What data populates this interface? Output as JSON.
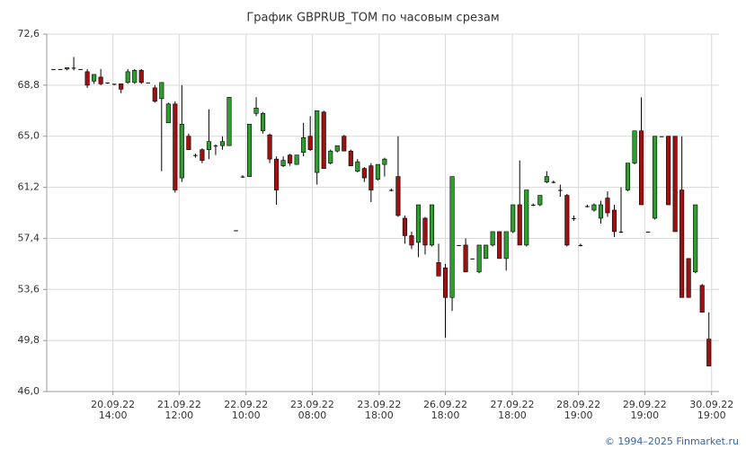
{
  "chart_data": {
    "type": "candlestick",
    "title": "График GBPRUB_TOM по часовым срезам",
    "footer": "© 1994–2025 Finmarket.ru",
    "up_color": "#2e9e2e",
    "down_color": "#a01010",
    "grid": true,
    "ylim": [
      46.0,
      72.6
    ],
    "yticks": [
      {
        "value": 46.0,
        "label": "46,0"
      },
      {
        "value": 49.8,
        "label": "49,8"
      },
      {
        "value": 53.6,
        "label": "53,6"
      },
      {
        "value": 57.4,
        "label": "57,4"
      },
      {
        "value": 61.2,
        "label": "61,2"
      },
      {
        "value": 65.0,
        "label": "65,0"
      },
      {
        "value": 68.8,
        "label": "68,8"
      },
      {
        "value": 72.6,
        "label": "72,6"
      }
    ],
    "xlim": [
      -1,
      98.5
    ],
    "xticks": [
      {
        "value": 8.8,
        "label": [
          "20.09.22",
          "14:00"
        ]
      },
      {
        "value": 18.6,
        "label": [
          "21.09.22",
          "12:00"
        ]
      },
      {
        "value": 28.5,
        "label": [
          "22.09.22",
          "10:00"
        ]
      },
      {
        "value": 38.3,
        "label": [
          "23.09.22",
          "08:00"
        ]
      },
      {
        "value": 48.2,
        "label": [
          "23.09.22",
          "18:00"
        ]
      },
      {
        "value": 58.0,
        "label": [
          "26.09.22",
          "18:00"
        ]
      },
      {
        "value": 67.9,
        "label": [
          "27.09.22",
          "18:00"
        ]
      },
      {
        "value": 77.7,
        "label": [
          "28.09.22",
          "19:00"
        ]
      },
      {
        "value": 87.5,
        "label": [
          "29.09.22",
          "19:00"
        ]
      },
      {
        "value": 97.4,
        "label": [
          "30.09.22",
          "19:00"
        ]
      }
    ],
    "x": [
      0,
      1,
      2,
      3,
      4,
      5,
      6,
      7,
      8,
      9,
      10,
      11,
      12,
      13,
      14,
      15,
      16,
      17,
      18,
      19,
      20,
      21,
      22,
      23,
      24,
      25,
      26,
      27,
      28,
      29,
      30,
      31,
      32,
      33,
      34,
      35,
      36,
      37,
      38,
      39,
      40,
      41,
      42,
      43,
      44,
      45,
      46,
      47,
      48,
      49,
      50,
      51,
      52,
      53,
      54,
      55,
      56,
      57,
      58,
      59,
      60,
      61,
      62,
      63,
      64,
      65,
      66,
      67,
      68,
      69,
      70,
      71,
      72,
      73,
      74,
      75,
      76,
      77,
      78,
      79,
      80,
      81,
      82,
      83,
      84,
      85,
      86,
      87,
      88,
      89,
      90,
      91,
      92,
      93,
      94,
      95,
      96,
      97
    ],
    "open": [
      70.0,
      70.0,
      70.0,
      70.1,
      70.0,
      69.8,
      69.1,
      69.4,
      69.0,
      68.9,
      68.9,
      69.0,
      69.0,
      69.9,
      69.0,
      68.6,
      67.8,
      66.0,
      67.4,
      61.9,
      65.0,
      63.6,
      64.0,
      64.0,
      64.3,
      64.3,
      64.3,
      58.0,
      62.0,
      62.0,
      66.7,
      65.4,
      65.1,
      63.3,
      62.8,
      63.6,
      62.9,
      63.8,
      65.0,
      62.3,
      66.8,
      63.0,
      63.9,
      65.0,
      63.9,
      62.4,
      62.6,
      62.8,
      61.8,
      62.9,
      61.0,
      62.0,
      58.9,
      57.6,
      57.1,
      58.9,
      56.9,
      55.6,
      55.2,
      53.0,
      56.9,
      56.9,
      55.9,
      54.9,
      55.9,
      56.9,
      57.9,
      55.9,
      57.9,
      59.9,
      56.9,
      59.9,
      59.9,
      61.6,
      61.6,
      61.0,
      60.6,
      58.9,
      56.9,
      59.8,
      59.5,
      58.9,
      60.4,
      59.5,
      57.9,
      61.0,
      63.0,
      65.4,
      57.9,
      58.9,
      65.0,
      65.0,
      65.0,
      61.0,
      55.9,
      54.9,
      53.9,
      49.9
    ],
    "high": [
      70.0,
      70.0,
      70.1,
      70.9,
      70.0,
      70.0,
      69.6,
      70.0,
      69.0,
      68.9,
      68.9,
      70.0,
      70.0,
      70.0,
      69.0,
      68.8,
      69.0,
      67.5,
      67.6,
      68.8,
      65.2,
      63.7,
      64.1,
      67.0,
      64.4,
      65.0,
      67.9,
      58.0,
      62.1,
      65.9,
      67.9,
      66.8,
      65.2,
      63.5,
      63.5,
      63.7,
      63.6,
      66.0,
      66.5,
      66.9,
      66.9,
      64.0,
      64.3,
      65.1,
      64.0,
      63.3,
      62.7,
      63.0,
      62.9,
      63.4,
      61.1,
      65.0,
      59.1,
      57.9,
      59.9,
      59.0,
      59.9,
      57.0,
      55.5,
      62.0,
      56.9,
      57.4,
      55.9,
      56.9,
      56.9,
      57.9,
      57.9,
      57.9,
      59.9,
      63.2,
      61.0,
      60.0,
      60.6,
      62.4,
      61.7,
      61.4,
      60.7,
      59.1,
      57.0,
      59.9,
      60.0,
      60.2,
      60.9,
      59.9,
      61.2,
      63.0,
      65.4,
      67.9,
      57.9,
      65.0,
      65.0,
      65.0,
      65.0,
      65.0,
      55.9,
      59.9,
      54.0,
      51.9
    ],
    "low": [
      70.0,
      70.0,
      69.9,
      69.9,
      70.0,
      68.6,
      68.9,
      68.8,
      68.9,
      68.8,
      68.2,
      68.9,
      68.9,
      68.9,
      69.0,
      67.5,
      62.4,
      66.0,
      60.8,
      61.6,
      64.0,
      63.4,
      63.0,
      63.3,
      63.6,
      64.0,
      64.3,
      58.0,
      61.9,
      62.0,
      66.5,
      65.2,
      63.0,
      59.9,
      62.7,
      62.8,
      62.9,
      63.5,
      63.9,
      61.4,
      62.6,
      62.9,
      63.8,
      63.9,
      62.8,
      62.3,
      61.6,
      60.1,
      61.7,
      62.0,
      60.9,
      59.0,
      57.0,
      56.6,
      56.0,
      56.2,
      56.8,
      54.6,
      50.0,
      52.0,
      56.9,
      54.9,
      55.9,
      54.8,
      55.9,
      56.8,
      55.9,
      55.0,
      57.8,
      56.9,
      56.8,
      59.8,
      59.8,
      61.5,
      61.5,
      60.5,
      56.8,
      58.7,
      56.8,
      59.7,
      59.4,
      58.5,
      59.0,
      57.5,
      57.8,
      60.9,
      62.9,
      59.9,
      57.9,
      58.8,
      65.0,
      59.9,
      57.9,
      53.0,
      53.0,
      54.8,
      51.9,
      47.9
    ],
    "close": [
      70.0,
      70.0,
      70.1,
      70.1,
      70.0,
      68.8,
      69.6,
      68.9,
      69.0,
      68.9,
      68.5,
      69.8,
      69.9,
      69.0,
      69.0,
      67.6,
      69.0,
      67.4,
      61.0,
      65.9,
      64.0,
      63.6,
      63.2,
      64.6,
      64.3,
      64.6,
      67.9,
      58.0,
      62.0,
      65.9,
      67.1,
      66.7,
      63.3,
      61.0,
      63.2,
      63.0,
      63.6,
      64.9,
      64.0,
      66.9,
      62.6,
      63.9,
      64.3,
      63.9,
      62.8,
      63.1,
      61.9,
      61.0,
      62.9,
      63.3,
      61.0,
      59.1,
      57.6,
      56.9,
      59.9,
      56.9,
      59.9,
      54.6,
      53.0,
      62.0,
      56.9,
      54.9,
      55.9,
      56.9,
      56.9,
      57.9,
      55.9,
      57.9,
      59.9,
      56.9,
      61.0,
      59.9,
      60.6,
      62.0,
      61.6,
      61.0,
      56.9,
      58.9,
      56.9,
      59.8,
      59.9,
      59.9,
      59.3,
      57.9,
      57.9,
      63.0,
      65.4,
      59.9,
      57.9,
      65.0,
      65.0,
      59.9,
      57.9,
      53.0,
      53.0,
      59.9,
      51.9,
      47.9
    ]
  }
}
